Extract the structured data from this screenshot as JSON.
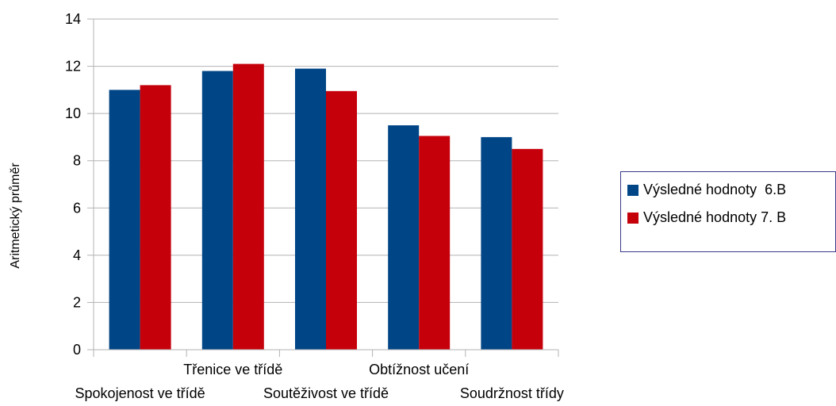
{
  "chart_data": {
    "type": "bar",
    "title": "",
    "xlabel": "",
    "ylabel": "Aritmetický průměr",
    "ylim": [
      0,
      14
    ],
    "yticks": [
      0,
      2,
      4,
      6,
      8,
      10,
      12,
      14
    ],
    "grid": true,
    "legend_position": "right",
    "categories": [
      "Spokojenost ve třídě",
      "Třenice ve třídě",
      "Soutěživost ve třídě",
      "Obtížnost učení",
      "Soudržnost třídy"
    ],
    "series": [
      {
        "name": "Výsledné hodnoty  6.B",
        "color": "#004586",
        "values": [
          11.0,
          11.8,
          11.9,
          9.5,
          9.0
        ]
      },
      {
        "name": "Výsledné hodnoty 7. B",
        "color": "#c5000b",
        "values": [
          11.2,
          12.1,
          10.95,
          9.05,
          8.5
        ]
      }
    ]
  },
  "colors": {
    "grid": "#b3b3b3",
    "axis": "#b3b3b3",
    "legend_border": "#3a3a8a"
  }
}
